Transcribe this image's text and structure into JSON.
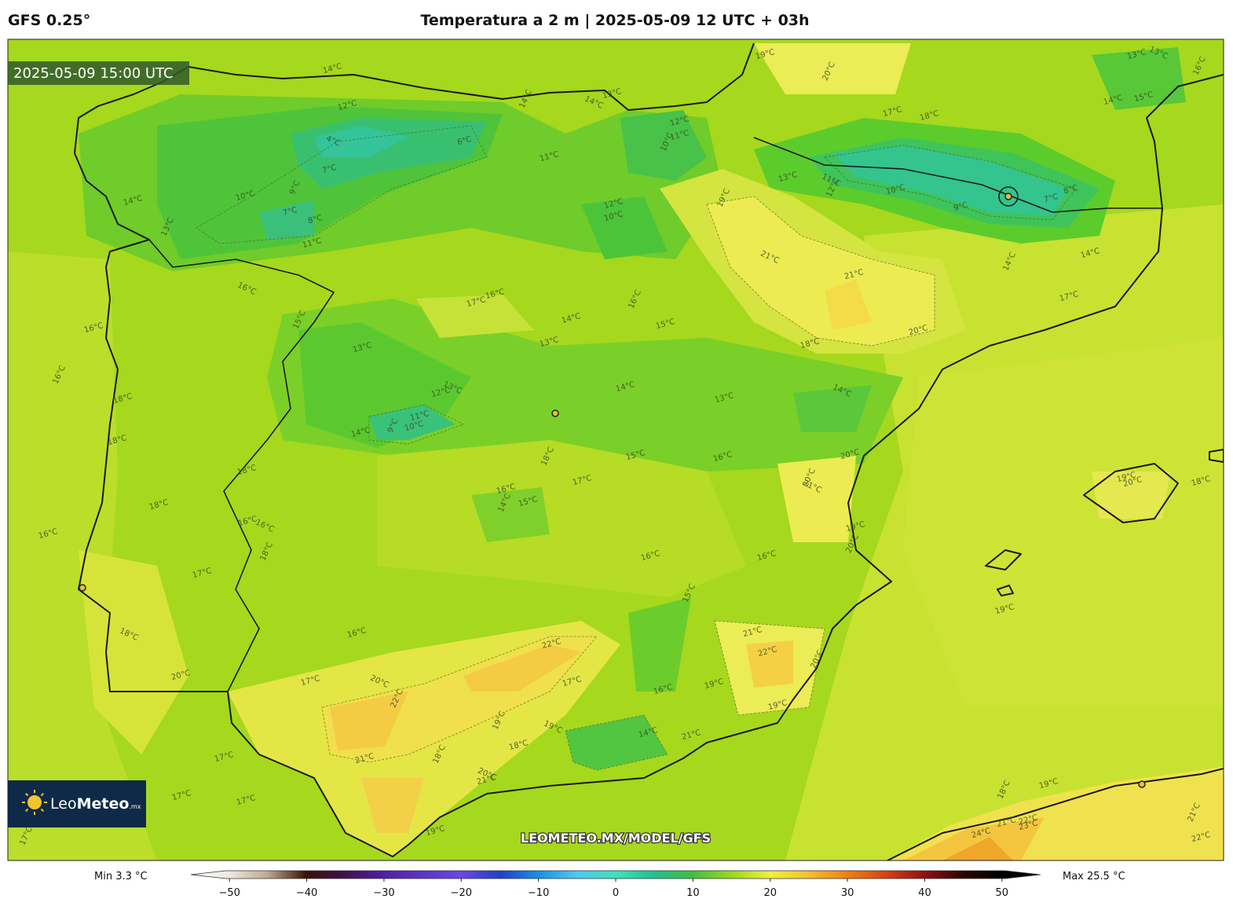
{
  "header": {
    "model": "GFS 0.25°",
    "title": "Temperatura a 2 m | 2025-05-09 12 UTC + 03h"
  },
  "map": {
    "valid_time": "2025-05-09 15:00 UTC",
    "watermark": "LEOMETEO.MX/MODEL/GFS",
    "logo": {
      "light": "Leo",
      "bold": "Meteo",
      "suffix": ".mx"
    },
    "contour_labels": [
      "14°C",
      "12°C",
      "14°C",
      "14°C",
      "13°C",
      "12°C",
      "11°C",
      "10°C",
      "11°C",
      "6°C",
      "4°C",
      "7°C",
      "9°C",
      "10°C",
      "7°C",
      "8°C",
      "11°C",
      "13°C",
      "14°C",
      "12°C",
      "10°C",
      "19°C",
      "20°C",
      "13°C",
      "13°C",
      "14°C",
      "15°C",
      "16°C",
      "17°C",
      "18°C",
      "13°C",
      "11°C",
      "12°C",
      "10°C",
      "9°C",
      "8°C",
      "7°C",
      "19°C",
      "21°C",
      "21°C",
      "20°C",
      "18°C",
      "14°C",
      "14°C",
      "17°C",
      "16°C",
      "16°C",
      "16°C",
      "18°C",
      "18°C",
      "17°C",
      "16°C",
      "16°C",
      "14°C",
      "13°C",
      "15°C",
      "13°C",
      "15°C",
      "12°C",
      "13°C",
      "11°C",
      "10°C",
      "9°C",
      "14°C",
      "14°C",
      "13°C",
      "14°C",
      "18°C",
      "15°C",
      "16°C",
      "17°C",
      "20°C",
      "20°C",
      "21°C",
      "18°C",
      "18°C",
      "16°C",
      "14°C",
      "15°C",
      "16°C",
      "16°C",
      "16°C",
      "18°C",
      "17°C",
      "16°C",
      "16°C",
      "19°C",
      "20°C",
      "19°C",
      "19°C",
      "20°C",
      "18°C",
      "15°C",
      "16°C",
      "18°C",
      "21°C",
      "22°C",
      "20°C",
      "22°C",
      "20°C",
      "17°C",
      "20°C",
      "22°C",
      "17°C",
      "16°C",
      "19°C",
      "19°C",
      "19°C",
      "19°C",
      "14°C",
      "21°C",
      "18°C",
      "18°C",
      "21°C",
      "17°C",
      "20°C",
      "21°C",
      "18°C",
      "19°C",
      "17°C",
      "17°C",
      "19°C",
      "17°C",
      "21°C",
      "22°C",
      "23°C",
      "24°C",
      "21°C",
      "22°C"
    ]
  },
  "colorbar": {
    "min_label": "Min 3.3 °C",
    "max_label": "Max 25.5 °C",
    "lim": [
      -55,
      55
    ],
    "ticks": [
      {
        "value": -50,
        "label": "−50"
      },
      {
        "value": -40,
        "label": "−40"
      },
      {
        "value": -30,
        "label": "−30"
      },
      {
        "value": -20,
        "label": "−20"
      },
      {
        "value": -10,
        "label": "−10"
      },
      0,
      10,
      20,
      30,
      40,
      50
    ]
  }
}
